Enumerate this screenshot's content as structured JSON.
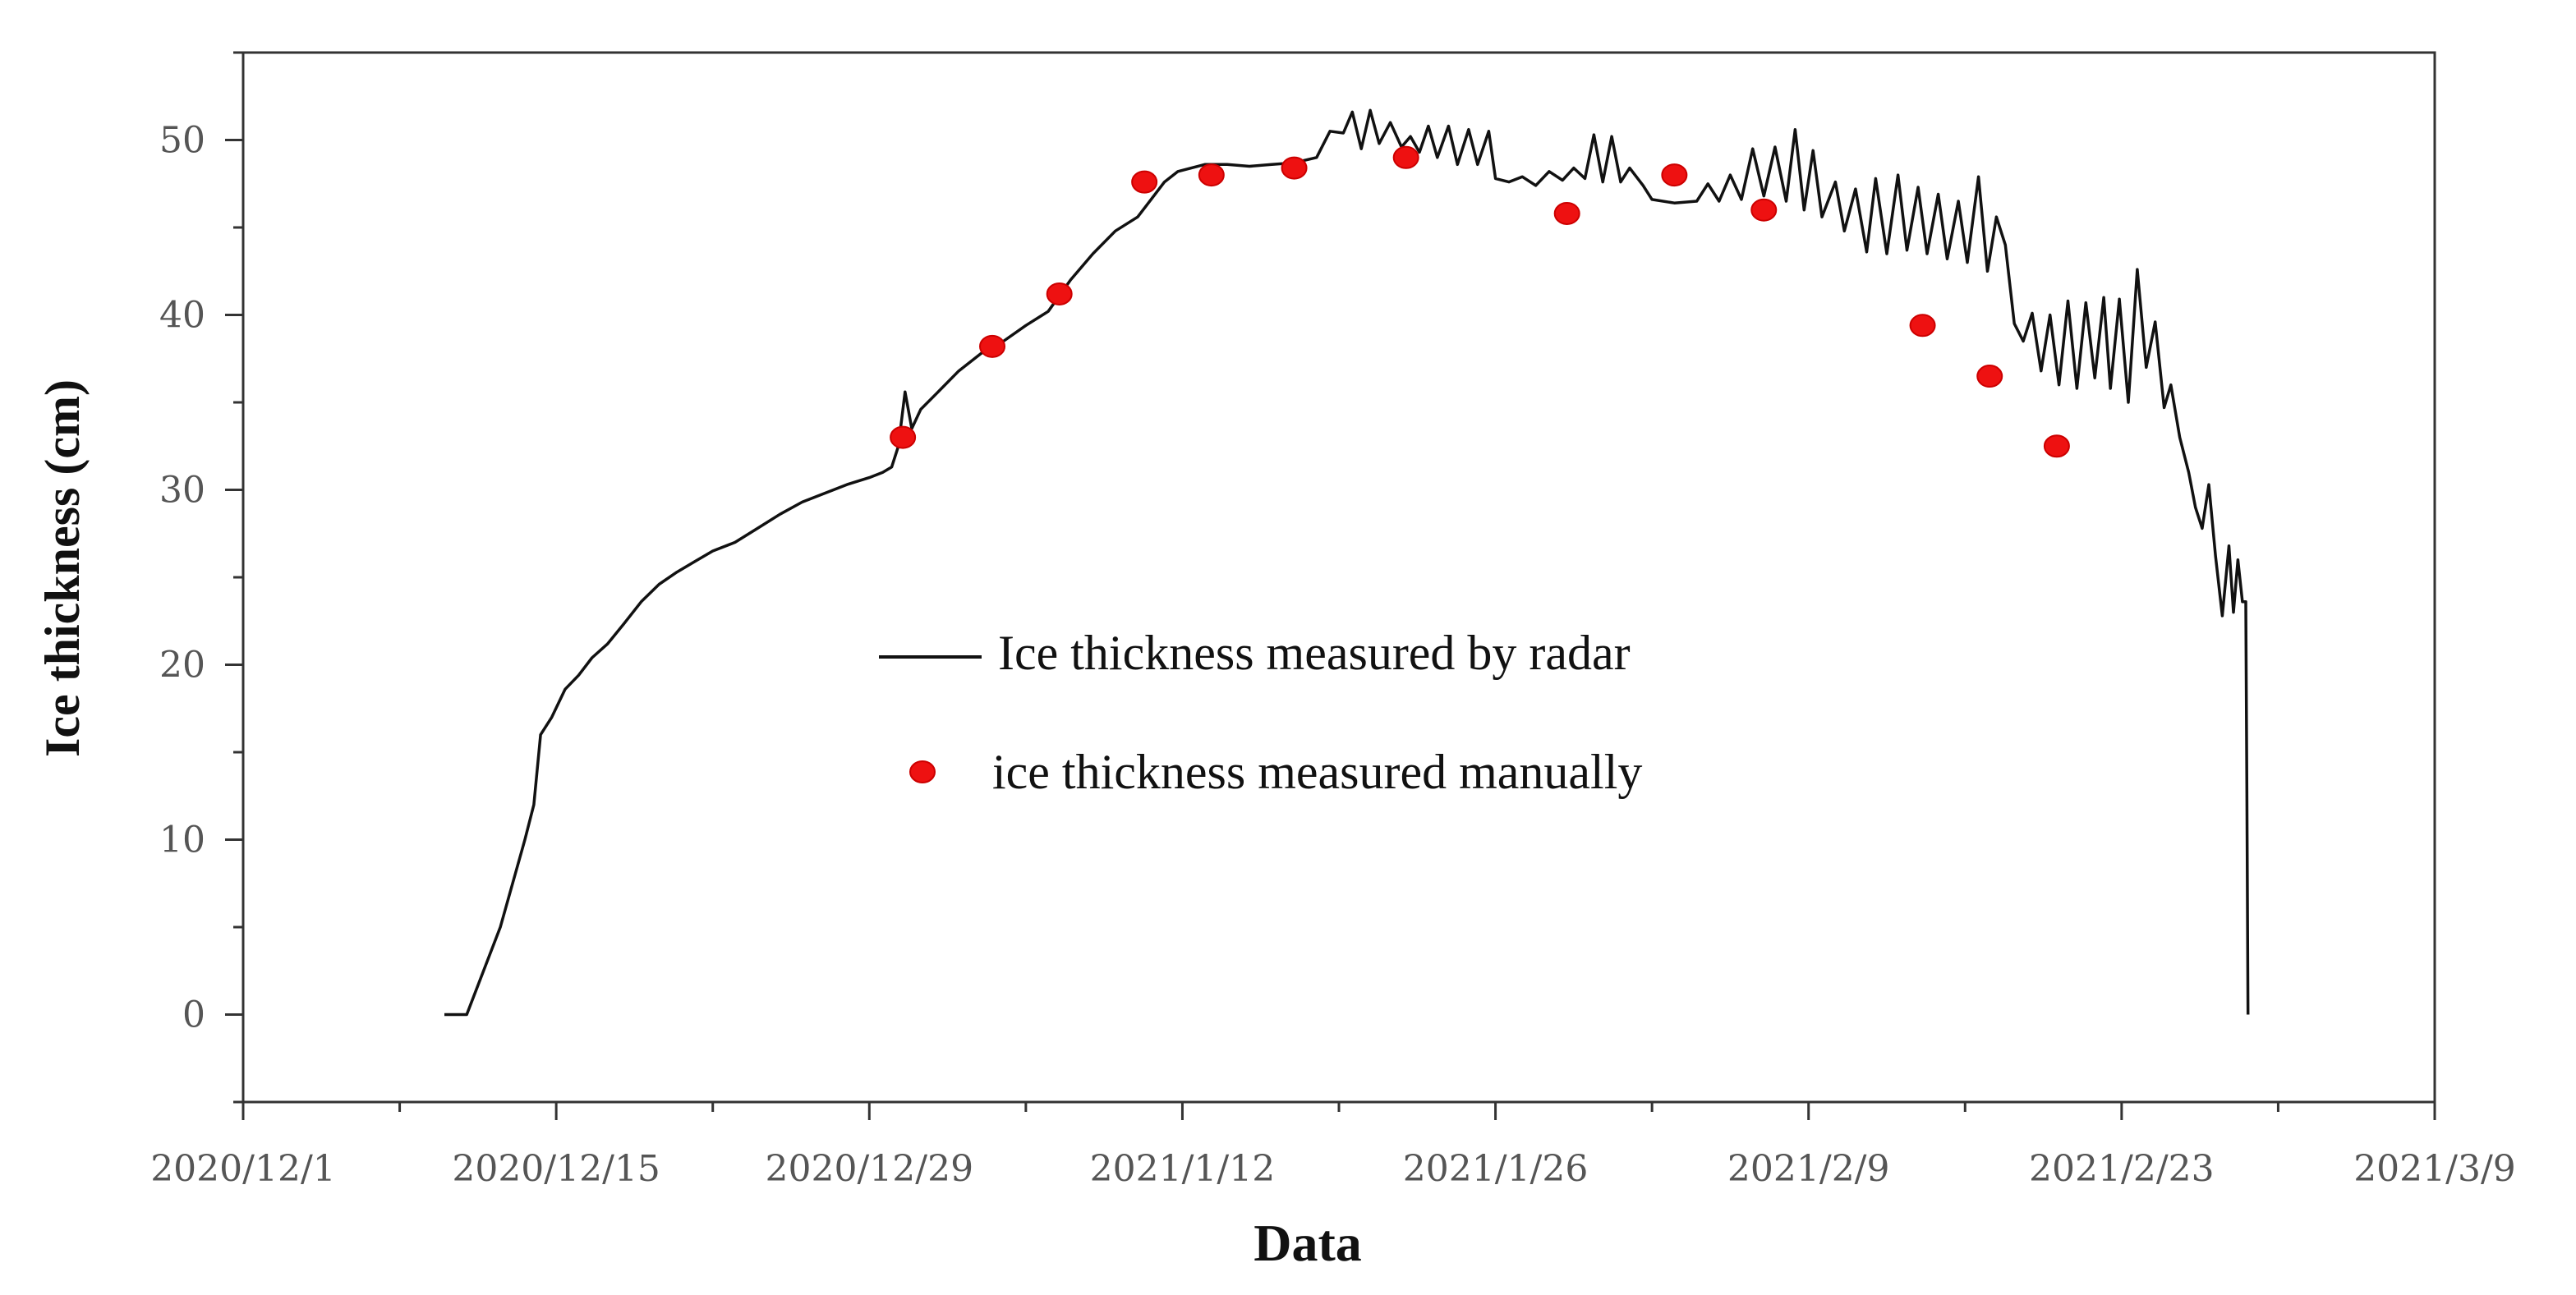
{
  "chart_data": {
    "type": "line",
    "xlabel": "Data",
    "ylabel": "Ice thickness (cm)",
    "ylim": [
      -5,
      55
    ],
    "y_ticks": [
      0,
      10,
      20,
      30,
      40,
      50
    ],
    "x_range_days": [
      0,
      98
    ],
    "x_ticks": [
      {
        "day": 0,
        "label": "2020/12/1"
      },
      {
        "day": 14,
        "label": "2020/12/15"
      },
      {
        "day": 28,
        "label": "2020/12/29"
      },
      {
        "day": 42,
        "label": "2021/1/12"
      },
      {
        "day": 56,
        "label": "2021/1/26"
      },
      {
        "day": 70,
        "label": "2021/2/9"
      },
      {
        "day": 84,
        "label": "2021/2/23"
      },
      {
        "day": 98,
        "label": "2021/3/9"
      }
    ],
    "legend_position": "center",
    "series": [
      {
        "name": "Ice thickness measured by radar",
        "kind": "line",
        "color": "#111111",
        "points": [
          [
            9.0,
            0
          ],
          [
            10.0,
            0
          ],
          [
            11.5,
            5
          ],
          [
            12.6,
            10
          ],
          [
            13.0,
            12
          ],
          [
            13.3,
            16
          ],
          [
            13.8,
            17
          ],
          [
            14.4,
            18.6
          ],
          [
            15.0,
            19.4
          ],
          [
            15.6,
            20.4
          ],
          [
            16.3,
            21.2
          ],
          [
            17.0,
            22.3
          ],
          [
            17.8,
            23.6
          ],
          [
            18.6,
            24.6
          ],
          [
            19.4,
            25.3
          ],
          [
            20.2,
            25.9
          ],
          [
            21.0,
            26.5
          ],
          [
            22.0,
            27.0
          ],
          [
            23.0,
            27.8
          ],
          [
            24.0,
            28.6
          ],
          [
            25.0,
            29.3
          ],
          [
            26.0,
            29.8
          ],
          [
            27.0,
            30.3
          ],
          [
            28.0,
            30.7
          ],
          [
            28.6,
            31.0
          ],
          [
            29.0,
            31.3
          ],
          [
            29.3,
            32.5
          ],
          [
            29.6,
            35.6
          ],
          [
            29.9,
            33.5
          ],
          [
            30.3,
            34.6
          ],
          [
            31.0,
            35.5
          ],
          [
            32.0,
            36.8
          ],
          [
            33.0,
            37.8
          ],
          [
            34.0,
            38.5
          ],
          [
            35.0,
            39.4
          ],
          [
            36.0,
            40.2
          ],
          [
            37.0,
            42.0
          ],
          [
            38.0,
            43.5
          ],
          [
            39.0,
            44.8
          ],
          [
            40.0,
            45.6
          ],
          [
            40.6,
            46.6
          ],
          [
            41.2,
            47.6
          ],
          [
            41.8,
            48.2
          ],
          [
            42.4,
            48.4
          ],
          [
            43.0,
            48.6
          ],
          [
            44.0,
            48.6
          ],
          [
            45.0,
            48.5
          ],
          [
            46.0,
            48.6
          ],
          [
            47.0,
            48.7
          ],
          [
            48.0,
            49.0
          ],
          [
            48.6,
            50.5
          ],
          [
            49.2,
            50.4
          ],
          [
            49.6,
            51.6
          ],
          [
            50.0,
            49.5
          ],
          [
            50.4,
            51.7
          ],
          [
            50.8,
            49.8
          ],
          [
            51.3,
            51.0
          ],
          [
            51.8,
            49.6
          ],
          [
            52.2,
            50.2
          ],
          [
            52.6,
            49.3
          ],
          [
            53.0,
            50.8
          ],
          [
            53.4,
            49.0
          ],
          [
            53.9,
            50.8
          ],
          [
            54.3,
            48.6
          ],
          [
            54.8,
            50.6
          ],
          [
            55.2,
            48.6
          ],
          [
            55.7,
            50.5
          ],
          [
            56.0,
            47.8
          ],
          [
            56.6,
            47.6
          ],
          [
            57.2,
            47.9
          ],
          [
            57.8,
            47.4
          ],
          [
            58.4,
            48.2
          ],
          [
            59.0,
            47.7
          ],
          [
            59.5,
            48.4
          ],
          [
            60.0,
            47.8
          ],
          [
            60.4,
            50.3
          ],
          [
            60.8,
            47.6
          ],
          [
            61.2,
            50.2
          ],
          [
            61.6,
            47.6
          ],
          [
            62.0,
            48.4
          ],
          [
            62.6,
            47.4
          ],
          [
            63.0,
            46.6
          ],
          [
            64.0,
            46.4
          ],
          [
            65.0,
            46.5
          ],
          [
            65.5,
            47.5
          ],
          [
            66.0,
            46.5
          ],
          [
            66.5,
            48.0
          ],
          [
            67.0,
            46.6
          ],
          [
            67.5,
            49.5
          ],
          [
            68.0,
            46.8
          ],
          [
            68.5,
            49.6
          ],
          [
            69.0,
            46.5
          ],
          [
            69.4,
            50.6
          ],
          [
            69.8,
            46.0
          ],
          [
            70.2,
            49.4
          ],
          [
            70.6,
            45.6
          ],
          [
            71.2,
            47.6
          ],
          [
            71.6,
            44.8
          ],
          [
            72.1,
            47.2
          ],
          [
            72.6,
            43.6
          ],
          [
            73.0,
            47.8
          ],
          [
            73.5,
            43.5
          ],
          [
            74.0,
            48.0
          ],
          [
            74.4,
            43.7
          ],
          [
            74.9,
            47.3
          ],
          [
            75.3,
            43.5
          ],
          [
            75.8,
            46.9
          ],
          [
            76.2,
            43.2
          ],
          [
            76.7,
            46.5
          ],
          [
            77.1,
            43.0
          ],
          [
            77.6,
            47.9
          ],
          [
            78.0,
            42.5
          ],
          [
            78.4,
            45.6
          ],
          [
            78.8,
            44.0
          ],
          [
            79.2,
            39.5
          ],
          [
            79.6,
            38.5
          ],
          [
            80.0,
            40.1
          ],
          [
            80.4,
            36.8
          ],
          [
            80.8,
            40.0
          ],
          [
            81.2,
            36.0
          ],
          [
            81.6,
            40.8
          ],
          [
            82.0,
            35.8
          ],
          [
            82.4,
            40.7
          ],
          [
            82.8,
            36.4
          ],
          [
            83.2,
            41.0
          ],
          [
            83.5,
            35.8
          ],
          [
            83.9,
            40.9
          ],
          [
            84.3,
            35.0
          ],
          [
            84.7,
            42.6
          ],
          [
            85.1,
            37.0
          ],
          [
            85.5,
            39.6
          ],
          [
            85.9,
            34.7
          ],
          [
            86.2,
            36.0
          ],
          [
            86.6,
            33.0
          ],
          [
            87.0,
            31.0
          ],
          [
            87.3,
            29.0
          ],
          [
            87.6,
            27.8
          ],
          [
            87.9,
            30.3
          ],
          [
            88.2,
            26.2
          ],
          [
            88.5,
            22.8
          ],
          [
            88.8,
            26.8
          ],
          [
            89.0,
            23.0
          ],
          [
            89.2,
            26.0
          ],
          [
            89.4,
            23.6
          ],
          [
            89.55,
            23.6
          ],
          [
            89.6,
            13.0
          ],
          [
            89.65,
            0
          ]
        ]
      },
      {
        "name": "ice thickness measured manually",
        "kind": "scatter",
        "color": "#ee1111",
        "points": [
          [
            29.5,
            33.0
          ],
          [
            33.5,
            38.2
          ],
          [
            36.5,
            41.2
          ],
          [
            40.3,
            47.6
          ],
          [
            43.3,
            48.0
          ],
          [
            47.0,
            48.4
          ],
          [
            52.0,
            49.0
          ],
          [
            59.2,
            45.8
          ],
          [
            64.0,
            48.0
          ],
          [
            68.0,
            46.0
          ],
          [
            75.1,
            39.4
          ],
          [
            78.1,
            36.5
          ],
          [
            81.1,
            32.5
          ]
        ]
      }
    ]
  }
}
